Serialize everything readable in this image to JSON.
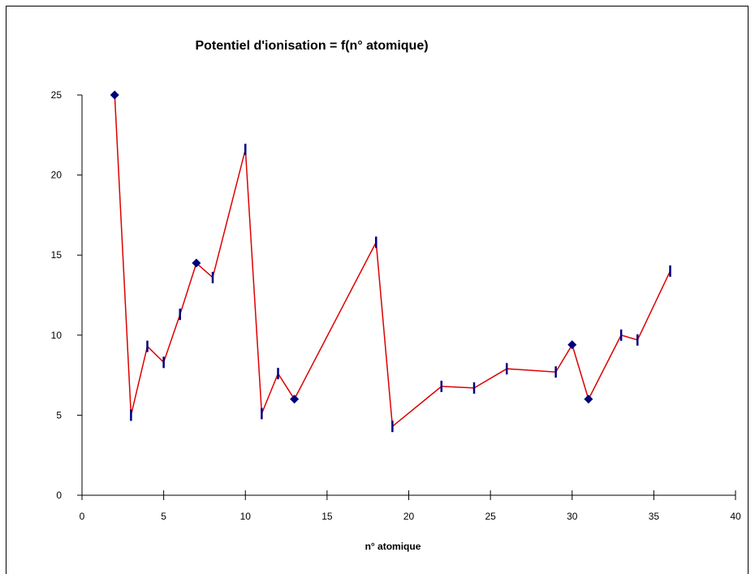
{
  "chart_data": {
    "type": "line",
    "title": "Potentiel d'ionisation = f(n° atomique)",
    "xlabel": "n° atomique",
    "ylabel": "",
    "xlim": [
      0,
      40
    ],
    "ylim": [
      0,
      25
    ],
    "xticks": [
      0,
      5,
      10,
      15,
      20,
      25,
      30,
      35,
      40
    ],
    "yticks": [
      0,
      5,
      10,
      15,
      20,
      25
    ],
    "grid": false,
    "legend": "none",
    "colors": {
      "line": "#dd0000",
      "marker": "#000080",
      "axis": "#000000"
    },
    "series": [
      {
        "x": [
          2,
          3,
          4,
          5,
          6,
          7,
          8,
          10,
          11,
          12,
          13,
          18,
          19,
          22,
          24,
          26,
          29,
          30,
          31,
          33,
          34,
          36
        ],
        "y": [
          25.0,
          5.0,
          9.3,
          8.3,
          11.3,
          14.5,
          13.6,
          21.6,
          5.1,
          7.6,
          6.0,
          15.8,
          4.3,
          6.8,
          6.7,
          7.9,
          7.7,
          9.4,
          6.0,
          10.0,
          9.7,
          14.0
        ],
        "markers": [
          "diamond",
          "dash",
          "dash",
          "dash",
          "dash",
          "diamond",
          "dash",
          "dash",
          "dash",
          "dash",
          "diamond",
          "dash",
          "dash",
          "dash",
          "dash",
          "dash",
          "dash",
          "diamond",
          "diamond",
          "dash",
          "dash",
          "dash"
        ]
      }
    ]
  }
}
